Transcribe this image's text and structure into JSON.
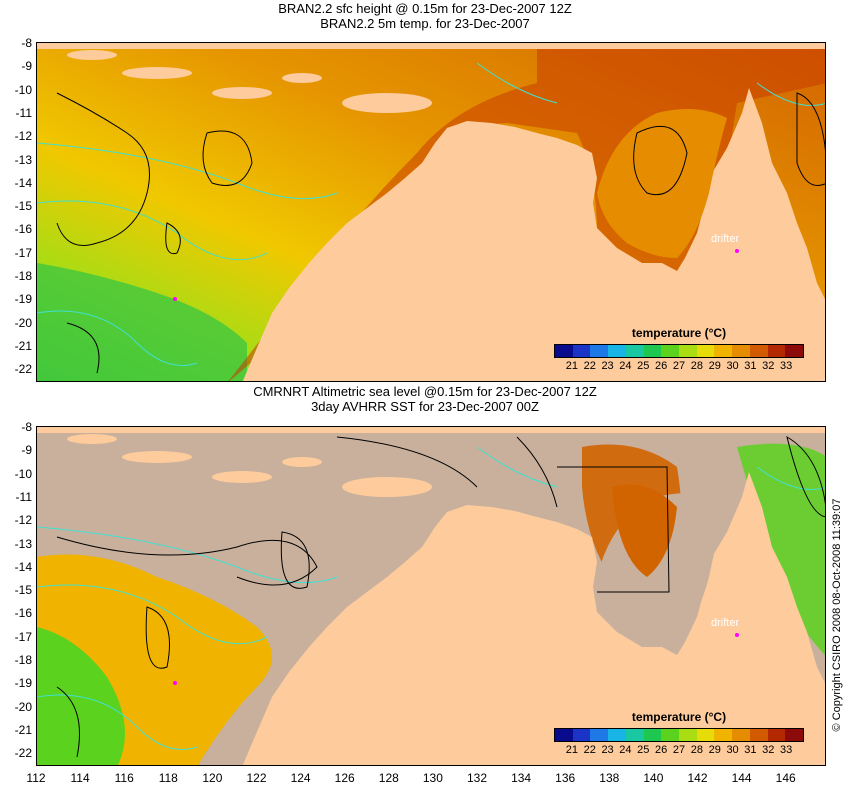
{
  "top_panel": {
    "title_line1": "BRAN2.2 sfc height @ 0.15m for 23-Dec-2007 12Z",
    "title_line2": "BRAN2.2 5m temp. for 23-Dec-2007",
    "drifter_label": "drifter"
  },
  "bottom_panel": {
    "title_line1": "CMRNRT Altimetric sea level  @0.15m  for 23-Dec-2007 12Z",
    "title_line2": "3day AVHRR SST for 23-Dec-2007 00Z",
    "drifter_label": "drifter"
  },
  "latitude_ticks": [
    "-8",
    "-9",
    "-10",
    "-11",
    "-12",
    "-13",
    "-14",
    "-15",
    "-16",
    "-17",
    "-18",
    "-19",
    "-20",
    "-21",
    "-22"
  ],
  "longitude_ticks": [
    "112",
    "114",
    "116",
    "118",
    "120",
    "122",
    "124",
    "126",
    "128",
    "130",
    "132",
    "134",
    "136",
    "138",
    "140",
    "142",
    "144",
    "146"
  ],
  "legend": {
    "title": "temperature (°C)",
    "labels": [
      "21",
      "22",
      "23",
      "24",
      "25",
      "26",
      "27",
      "28",
      "29",
      "30",
      "31",
      "32",
      "33"
    ],
    "colors": [
      "#0a0a8c",
      "#1c33c8",
      "#1e78e6",
      "#19b4e6",
      "#19c8a0",
      "#1ec850",
      "#5ad21e",
      "#aadc14",
      "#e6dc0a",
      "#f0b400",
      "#e68c00",
      "#d25a00",
      "#b42800",
      "#8c0a0a"
    ]
  },
  "copyright": "© Copyright CSIRO 2008   08-Oct-2008 11:39:07",
  "colors": {
    "land": "#fdcb9c",
    "no_data": "#c8b09c",
    "contour": "#40e0d0",
    "drifter": "#ff00ff"
  }
}
